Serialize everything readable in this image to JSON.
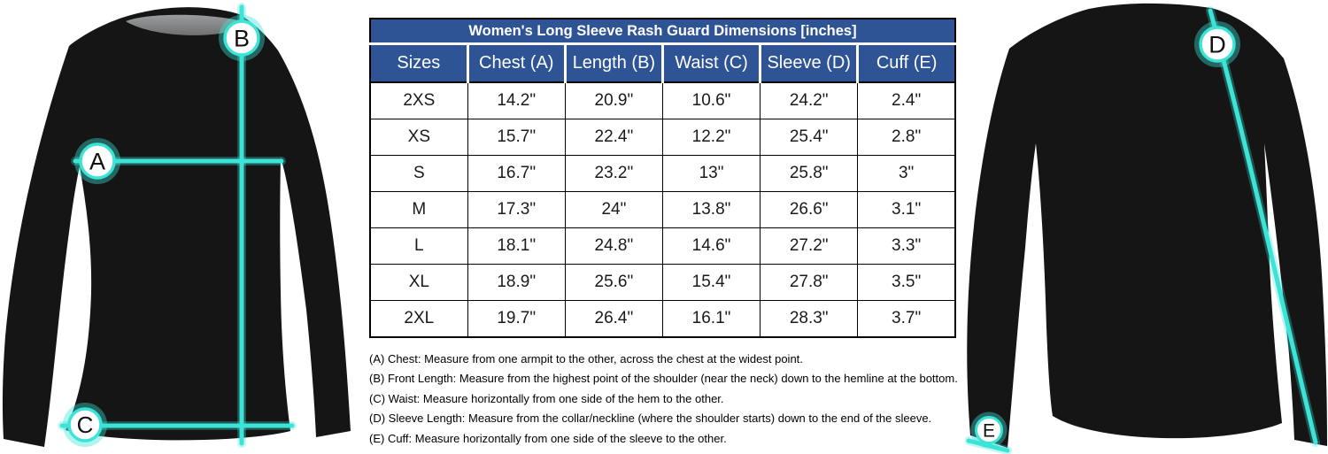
{
  "colors": {
    "header_blue": "#2F5496",
    "measure_cyan": "#3BE4D6",
    "shirt_black": "#151515",
    "collar_gray_top": "#9a9d9e",
    "collar_gray_bottom": "#6e7072"
  },
  "table": {
    "title": "Women's Long Sleeve Rash Guard Dimensions [inches]",
    "headers": [
      "Sizes",
      "Chest (A)",
      "Length (B)",
      "Waist (C)",
      "Sleeve (D)",
      "Cuff (E)"
    ],
    "rows": [
      [
        "2XS",
        "14.2\"",
        "20.9\"",
        "10.6\"",
        "24.2\"",
        "2.4\""
      ],
      [
        "XS",
        "15.7\"",
        "22.4\"",
        "12.2\"",
        "25.4\"",
        "2.8\""
      ],
      [
        "S",
        "16.7\"",
        "23.2\"",
        "13\"",
        "25.8\"",
        "3\""
      ],
      [
        "M",
        "17.3\"",
        "24\"",
        "13.8\"",
        "26.6\"",
        "3.1\""
      ],
      [
        "L",
        "18.1\"",
        "24.8\"",
        "14.6\"",
        "27.2\"",
        "3.3\""
      ],
      [
        "XL",
        "18.9\"",
        "25.6\"",
        "15.4\"",
        "27.8\"",
        "3.5\""
      ],
      [
        "2XL",
        "19.7\"",
        "26.4\"",
        "16.1\"",
        "28.3\"",
        "3.7\""
      ]
    ]
  },
  "notes": [
    "(A) Chest: Measure from one armpit to the other, across the chest at the widest point.",
    "(B) Front Length: Measure from the highest point of the shoulder (near the neck) down to the hemline at the bottom.",
    "(C) Waist: Measure horizontally from one side of the hem to the other.",
    "(D) Sleeve Length: Measure from the collar/neckline (where the shoulder starts) down to the end of the sleeve.",
    "(E) Cuff: Measure horizontally from one side of the sleeve to the other."
  ],
  "markers": {
    "a": "A",
    "b": "B",
    "c": "C",
    "d": "D",
    "e": "E"
  }
}
